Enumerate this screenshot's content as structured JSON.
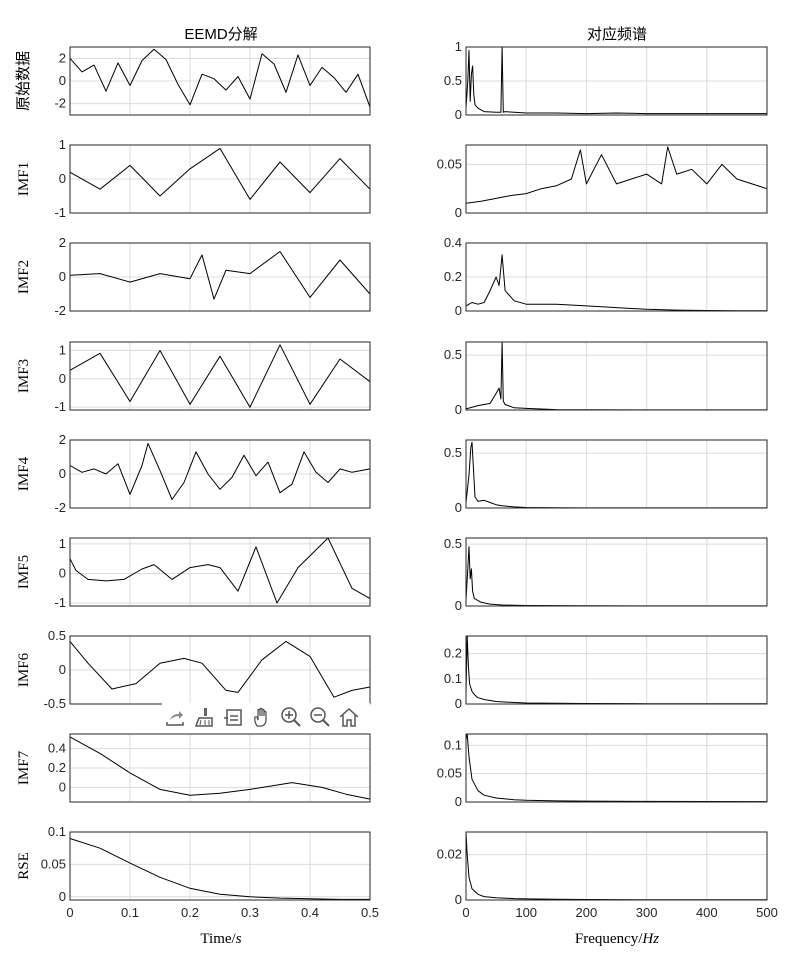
{
  "left_title": "EEMD分解",
  "right_title": "对应频谱",
  "x_label": {
    "text": "Time/",
    "italic": "s"
  },
  "f_label": {
    "text": "Frequency/",
    "italic": "Hz"
  },
  "toolbar": [
    {
      "name": "export-icon"
    },
    {
      "name": "brush-icon"
    },
    {
      "name": "datatip-icon"
    },
    {
      "name": "pan-icon"
    },
    {
      "name": "zoom-in-icon"
    },
    {
      "name": "zoom-out-icon"
    },
    {
      "name": "home-icon"
    }
  ],
  "chart_data": [
    {
      "type": "line",
      "panel": "time",
      "ylabel": "原始数据",
      "xlim": [
        0,
        0.5
      ],
      "ylim": [
        -3,
        3
      ],
      "yticks": [
        2,
        0,
        -2
      ],
      "yticklabels": [
        "2",
        "0",
        "-2"
      ],
      "xticks": [
        0,
        0.1,
        0.2,
        0.3,
        0.4,
        0.5
      ],
      "xticklabels": [],
      "grid": true,
      "x": [
        0,
        0.02,
        0.04,
        0.06,
        0.08,
        0.1,
        0.12,
        0.14,
        0.16,
        0.18,
        0.2,
        0.22,
        0.24,
        0.26,
        0.28,
        0.3,
        0.32,
        0.34,
        0.36,
        0.38,
        0.4,
        0.42,
        0.44,
        0.46,
        0.48,
        0.5
      ],
      "y": [
        2.0,
        0.8,
        1.4,
        -0.9,
        1.6,
        -0.4,
        1.8,
        2.8,
        1.9,
        -0.3,
        -2.1,
        0.6,
        0.2,
        -0.8,
        0.4,
        -1.6,
        2.4,
        1.5,
        -1.0,
        2.3,
        -0.4,
        1.2,
        0.3,
        -1.0,
        0.6,
        -2.3
      ]
    },
    {
      "type": "line",
      "panel": "time",
      "ylabel": "IMF1",
      "xlim": [
        0,
        0.5
      ],
      "ylim": [
        -1,
        1
      ],
      "yticks": [
        1,
        0,
        -1
      ],
      "yticklabels": [
        "1",
        "0",
        "-1"
      ],
      "xticks": [
        0,
        0.1,
        0.2,
        0.3,
        0.4,
        0.5
      ],
      "xticklabels": [],
      "grid": true,
      "x": [
        0,
        0.05,
        0.1,
        0.15,
        0.2,
        0.25,
        0.3,
        0.35,
        0.4,
        0.45,
        0.5
      ],
      "y": [
        0.2,
        -0.3,
        0.4,
        -0.5,
        0.3,
        0.9,
        -0.6,
        0.5,
        -0.4,
        0.6,
        -0.3
      ]
    },
    {
      "type": "line",
      "panel": "time",
      "ylabel": "IMF2",
      "xlim": [
        0,
        0.5
      ],
      "ylim": [
        -2,
        2
      ],
      "yticks": [
        2,
        0,
        -2
      ],
      "yticklabels": [
        "2",
        "0",
        "-2"
      ],
      "xticks": [
        0,
        0.1,
        0.2,
        0.3,
        0.4,
        0.5
      ],
      "xticklabels": [],
      "grid": true,
      "x": [
        0,
        0.05,
        0.1,
        0.15,
        0.2,
        0.22,
        0.24,
        0.26,
        0.3,
        0.35,
        0.4,
        0.45,
        0.5
      ],
      "y": [
        0.1,
        0.2,
        -0.3,
        0.2,
        -0.1,
        1.3,
        -1.3,
        0.4,
        0.2,
        1.5,
        -1.2,
        1.0,
        -1.0
      ]
    },
    {
      "type": "line",
      "panel": "time",
      "ylabel": "IMF3",
      "xlim": [
        0,
        0.5
      ],
      "ylim": [
        -1.1,
        1.3
      ],
      "yticks": [
        1,
        0,
        -1
      ],
      "yticklabels": [
        "1",
        "0",
        "-1"
      ],
      "xticks": [
        0,
        0.1,
        0.2,
        0.3,
        0.4,
        0.5
      ],
      "xticklabels": [],
      "grid": true,
      "x": [
        0,
        0.05,
        0.1,
        0.15,
        0.2,
        0.25,
        0.3,
        0.35,
        0.4,
        0.45,
        0.5
      ],
      "y": [
        0.3,
        0.9,
        -0.8,
        1.0,
        -0.9,
        0.8,
        -1.0,
        1.2,
        -0.9,
        0.7,
        -0.1
      ]
    },
    {
      "type": "line",
      "panel": "time",
      "ylabel": "IMF4",
      "xlim": [
        0,
        0.5
      ],
      "ylim": [
        -2,
        2
      ],
      "yticks": [
        2,
        0,
        -2
      ],
      "yticklabels": [
        "2",
        "0",
        "-2"
      ],
      "xticks": [
        0,
        0.1,
        0.2,
        0.3,
        0.4,
        0.5
      ],
      "xticklabels": [],
      "grid": true,
      "x": [
        0,
        0.02,
        0.04,
        0.06,
        0.08,
        0.1,
        0.12,
        0.13,
        0.15,
        0.17,
        0.19,
        0.21,
        0.23,
        0.25,
        0.27,
        0.29,
        0.31,
        0.33,
        0.35,
        0.37,
        0.39,
        0.41,
        0.43,
        0.45,
        0.47,
        0.5
      ],
      "y": [
        0.5,
        0.1,
        0.3,
        0,
        0.6,
        -1.2,
        0.5,
        1.8,
        0.2,
        -1.5,
        -0.5,
        1.3,
        0,
        -0.9,
        -0.2,
        1.1,
        -0.1,
        0.7,
        -1.1,
        -0.6,
        1.3,
        0.1,
        -0.5,
        0.3,
        0.1,
        0.3
      ]
    },
    {
      "type": "line",
      "panel": "time",
      "ylabel": "IMF5",
      "xlim": [
        0,
        0.5
      ],
      "ylim": [
        -1.1,
        1.2
      ],
      "yticks": [
        1,
        0,
        -1
      ],
      "yticklabels": [
        "1",
        "0",
        "-1"
      ],
      "xticks": [
        0,
        0.1,
        0.2,
        0.3,
        0.4,
        0.5
      ],
      "xticklabels": [],
      "grid": true,
      "x": [
        0,
        0.01,
        0.03,
        0.06,
        0.09,
        0.12,
        0.14,
        0.17,
        0.2,
        0.23,
        0.25,
        0.28,
        0.31,
        0.345,
        0.38,
        0.43,
        0.47,
        0.5
      ],
      "y": [
        0.5,
        0.1,
        -0.2,
        -0.25,
        -0.2,
        0.15,
        0.3,
        -0.2,
        0.2,
        0.3,
        0.2,
        -0.6,
        0.9,
        -1.0,
        0.2,
        1.2,
        -0.5,
        -0.85
      ]
    },
    {
      "type": "line",
      "panel": "time",
      "ylabel": "IMF6",
      "xlim": [
        0,
        0.5
      ],
      "ylim": [
        -0.5,
        0.5
      ],
      "yticks": [
        0.5,
        0,
        -0.5
      ],
      "yticklabels": [
        "0.5",
        "0",
        "-0.5"
      ],
      "xticks": [
        0,
        0.1,
        0.2,
        0.3,
        0.4,
        0.5
      ],
      "xticklabels": [],
      "grid": true,
      "x": [
        0,
        0.03,
        0.07,
        0.11,
        0.15,
        0.19,
        0.22,
        0.26,
        0.28,
        0.32,
        0.36,
        0.4,
        0.44,
        0.47,
        0.5
      ],
      "y": [
        0.42,
        0.1,
        -0.28,
        -0.2,
        0.1,
        0.17,
        0.1,
        -0.3,
        -0.33,
        0.15,
        0.42,
        0.2,
        -0.4,
        -0.3,
        -0.25
      ]
    },
    {
      "type": "line",
      "panel": "time",
      "ylabel": "IMF7",
      "xlim": [
        0,
        0.5
      ],
      "ylim": [
        -0.15,
        0.55
      ],
      "yticks": [
        0.4,
        0.2,
        0
      ],
      "yticklabels": [
        "0.4",
        "0.2",
        "0"
      ],
      "xticks": [
        0,
        0.1,
        0.2,
        0.3,
        0.4,
        0.5
      ],
      "xticklabels": [],
      "grid": true,
      "x": [
        0,
        0.05,
        0.1,
        0.15,
        0.2,
        0.25,
        0.3,
        0.37,
        0.42,
        0.46,
        0.5
      ],
      "y": [
        0.52,
        0.35,
        0.15,
        -0.02,
        -0.08,
        -0.06,
        -0.02,
        0.05,
        0.0,
        -0.07,
        -0.12
      ]
    },
    {
      "type": "line",
      "panel": "time",
      "ylabel": "RSE",
      "xlim": [
        0,
        0.5
      ],
      "ylim": [
        -0.005,
        0.1
      ],
      "yticks": [
        0.1,
        0.05,
        0
      ],
      "yticklabels": [
        "0.1",
        "0.05",
        "0"
      ],
      "xticks": [
        0,
        0.1,
        0.2,
        0.3,
        0.4,
        0.5
      ],
      "xticklabels": [
        "0",
        "0.1",
        "0.2",
        "0.3",
        "0.4",
        "0.5"
      ],
      "grid": true,
      "x": [
        0,
        0.05,
        0.1,
        0.15,
        0.2,
        0.25,
        0.3,
        0.35,
        0.4,
        0.45,
        0.5
      ],
      "y": [
        0.09,
        0.075,
        0.052,
        0.03,
        0.013,
        0.004,
        0.0,
        -0.002,
        -0.003,
        -0.004,
        -0.004
      ]
    },
    {
      "type": "line",
      "panel": "freq",
      "xlim": [
        0,
        500
      ],
      "ylim": [
        0,
        1
      ],
      "yticks": [
        1,
        0.5,
        0
      ],
      "yticklabels": [
        "1",
        "0.5",
        "0"
      ],
      "xticks": [
        0,
        100,
        200,
        300,
        400,
        500
      ],
      "xticklabels": [],
      "grid": true,
      "x": [
        0,
        3,
        5,
        7,
        9,
        11,
        13,
        15,
        20,
        30,
        50,
        55,
        58,
        60,
        62,
        65,
        80,
        100,
        150,
        200,
        250,
        300,
        350,
        400,
        450,
        500
      ],
      "y": [
        0.1,
        0.5,
        0.95,
        0.2,
        0.6,
        0.72,
        0.3,
        0.15,
        0.1,
        0.05,
        0.04,
        0.04,
        0.04,
        1.0,
        0.04,
        0.05,
        0.04,
        0.03,
        0.03,
        0.02,
        0.03,
        0.02,
        0.02,
        0.02,
        0.02,
        0.02
      ]
    },
    {
      "type": "line",
      "panel": "freq",
      "xlim": [
        0,
        500
      ],
      "ylim": [
        0,
        0.07
      ],
      "yticks": [
        0.05,
        0
      ],
      "yticklabels": [
        "0.05",
        "0"
      ],
      "xticks": [
        0,
        100,
        200,
        300,
        400,
        500
      ],
      "xticklabels": [],
      "grid": true,
      "x": [
        0,
        25,
        50,
        75,
        100,
        125,
        150,
        175,
        190,
        200,
        225,
        250,
        275,
        300,
        325,
        335,
        350,
        375,
        400,
        425,
        450,
        475,
        500
      ],
      "y": [
        0.01,
        0.012,
        0.015,
        0.018,
        0.02,
        0.025,
        0.028,
        0.035,
        0.065,
        0.03,
        0.06,
        0.03,
        0.035,
        0.04,
        0.03,
        0.068,
        0.04,
        0.045,
        0.03,
        0.05,
        0.035,
        0.03,
        0.025
      ]
    },
    {
      "type": "line",
      "panel": "freq",
      "xlim": [
        0,
        500
      ],
      "ylim": [
        0,
        0.4
      ],
      "yticks": [
        0.4,
        0.2,
        0
      ],
      "yticklabels": [
        "0.4",
        "0.2",
        "0"
      ],
      "xticks": [
        0,
        100,
        200,
        300,
        400,
        500
      ],
      "xticklabels": [],
      "grid": true,
      "x": [
        0,
        10,
        20,
        30,
        40,
        50,
        55,
        60,
        65,
        70,
        80,
        100,
        150,
        200,
        250,
        300,
        350,
        400,
        450,
        500
      ],
      "y": [
        0.03,
        0.05,
        0.04,
        0.05,
        0.12,
        0.2,
        0.15,
        0.33,
        0.12,
        0.1,
        0.06,
        0.04,
        0.04,
        0.03,
        0.02,
        0.01,
        0.005,
        0.003,
        0.002,
        0.002
      ]
    },
    {
      "type": "line",
      "panel": "freq",
      "xlim": [
        0,
        500
      ],
      "ylim": [
        0,
        0.62
      ],
      "yticks": [
        0.5,
        0
      ],
      "yticklabels": [
        "0.5",
        "0"
      ],
      "xticks": [
        0,
        100,
        200,
        300,
        400,
        500
      ],
      "xticklabels": [],
      "grid": true,
      "x": [
        0,
        20,
        40,
        50,
        55,
        58,
        60,
        62,
        65,
        80,
        100,
        120,
        150,
        200,
        300,
        400,
        500
      ],
      "y": [
        0.01,
        0.04,
        0.06,
        0.15,
        0.2,
        0.1,
        0.62,
        0.08,
        0.05,
        0.02,
        0.015,
        0.01,
        0.004,
        0.002,
        0.001,
        0.001,
        0.001
      ]
    },
    {
      "type": "line",
      "panel": "freq",
      "xlim": [
        0,
        500
      ],
      "ylim": [
        0,
        0.62
      ],
      "yticks": [
        0.5,
        0
      ],
      "yticklabels": [
        "0.5",
        "0"
      ],
      "xticks": [
        0,
        100,
        200,
        300,
        400,
        500
      ],
      "xticklabels": [],
      "grid": true,
      "x": [
        0,
        5,
        8,
        10,
        12,
        15,
        20,
        30,
        40,
        50,
        60,
        80,
        100,
        150,
        200,
        300,
        400,
        500
      ],
      "y": [
        0.05,
        0.3,
        0.55,
        0.6,
        0.4,
        0.1,
        0.06,
        0.07,
        0.05,
        0.03,
        0.02,
        0.01,
        0.005,
        0.002,
        0.001,
        0.001,
        0.001,
        0.001
      ]
    },
    {
      "type": "line",
      "panel": "freq",
      "xlim": [
        0,
        500
      ],
      "ylim": [
        0,
        0.55
      ],
      "yticks": [
        0.5,
        0
      ],
      "yticklabels": [
        "0.5",
        "0"
      ],
      "xticks": [
        0,
        100,
        200,
        300,
        400,
        500
      ],
      "xticklabels": [],
      "grid": true,
      "x": [
        0,
        3,
        5,
        7,
        9,
        11,
        14,
        18,
        25,
        40,
        60,
        100,
        200,
        300,
        400,
        500
      ],
      "y": [
        0.05,
        0.3,
        0.48,
        0.22,
        0.3,
        0.12,
        0.06,
        0.05,
        0.03,
        0.015,
        0.008,
        0.004,
        0.002,
        0.001,
        0.001,
        0.001
      ]
    },
    {
      "type": "line",
      "panel": "freq",
      "xlim": [
        0,
        500
      ],
      "ylim": [
        0,
        0.27
      ],
      "yticks": [
        0.2,
        0.1,
        0
      ],
      "yticklabels": [
        "0.2",
        "0.1",
        "0"
      ],
      "xticks": [
        0,
        100,
        200,
        300,
        400,
        500
      ],
      "xticklabels": [],
      "grid": true,
      "x": [
        0,
        2,
        4,
        6,
        10,
        15,
        20,
        30,
        50,
        80,
        100,
        150,
        200,
        300,
        400,
        500
      ],
      "y": [
        0.04,
        0.27,
        0.15,
        0.08,
        0.05,
        0.035,
        0.025,
        0.018,
        0.01,
        0.006,
        0.004,
        0.003,
        0.002,
        0.001,
        0.001,
        0.001
      ]
    },
    {
      "type": "line",
      "panel": "freq",
      "xlim": [
        0,
        500
      ],
      "ylim": [
        0,
        0.12
      ],
      "yticks": [
        0.1,
        0.05,
        0
      ],
      "yticklabels": [
        "0.1",
        "0.05",
        "0"
      ],
      "xticks": [
        0,
        100,
        200,
        300,
        400,
        500
      ],
      "xticklabels": [],
      "grid": true,
      "x": [
        0,
        2,
        5,
        10,
        20,
        30,
        50,
        80,
        100,
        150,
        200,
        300,
        400,
        500
      ],
      "y": [
        0.11,
        0.12,
        0.08,
        0.04,
        0.02,
        0.012,
        0.007,
        0.004,
        0.003,
        0.002,
        0.0015,
        0.001,
        0.0008,
        0.0006
      ]
    },
    {
      "type": "line",
      "panel": "freq",
      "xlim": [
        0,
        500
      ],
      "ylim": [
        0,
        0.03
      ],
      "yticks": [
        0.02,
        0
      ],
      "yticklabels": [
        "0.02",
        "0"
      ],
      "xticks": [
        0,
        100,
        200,
        300,
        400,
        500
      ],
      "xticklabels": [
        "0",
        "100",
        "200",
        "300",
        "400",
        "500"
      ],
      "grid": true,
      "x": [
        0,
        2,
        5,
        10,
        20,
        30,
        50,
        80,
        100,
        150,
        200,
        300,
        400,
        500
      ],
      "y": [
        0.03,
        0.02,
        0.01,
        0.005,
        0.0025,
        0.0015,
        0.001,
        0.0006,
        0.0005,
        0.0003,
        0.0002,
        0.0001,
        0.0001,
        0.0001
      ]
    }
  ]
}
